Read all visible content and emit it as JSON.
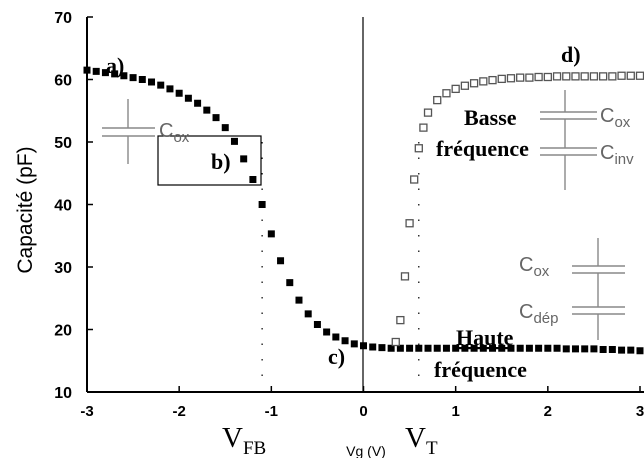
{
  "chart_data": {
    "type": "scatter",
    "xlabel": "Vg (V)",
    "ylabel": "Capacité (pF)",
    "xlim": [
      -3,
      3
    ],
    "ylim": [
      10,
      70
    ],
    "x_ticks": [
      "-3",
      "-2",
      "-1",
      "0",
      "1",
      "2",
      "3"
    ],
    "y_ticks": [
      "10",
      "20",
      "30",
      "40",
      "50",
      "60",
      "70"
    ],
    "grid": false,
    "series": [
      {
        "name": "Haute fréquence",
        "marker": "filled-square",
        "color": "#000000",
        "x": [
          -3.0,
          -2.9,
          -2.8,
          -2.7,
          -2.6,
          -2.5,
          -2.4,
          -2.3,
          -2.2,
          -2.1,
          -2.0,
          -1.9,
          -1.8,
          -1.7,
          -1.6,
          -1.5,
          -1.4,
          -1.3,
          -1.2,
          -1.1,
          -1.0,
          -0.9,
          -0.8,
          -0.7,
          -0.6,
          -0.5,
          -0.4,
          -0.3,
          -0.2,
          -0.1,
          0.0,
          0.1,
          0.2,
          0.3,
          0.4,
          0.5,
          0.6,
          0.7,
          0.8,
          0.9,
          1.0,
          1.1,
          1.2,
          1.3,
          1.4,
          1.5,
          1.6,
          1.7,
          1.8,
          1.9,
          2.0,
          2.1,
          2.2,
          2.3,
          2.4,
          2.5,
          2.6,
          2.7,
          2.8,
          2.9,
          3.0
        ],
        "y": [
          61.5,
          61.3,
          61.1,
          60.9,
          60.6,
          60.3,
          60.0,
          59.6,
          59.1,
          58.5,
          57.8,
          57.0,
          56.2,
          55.1,
          53.9,
          52.3,
          50.1,
          47.3,
          44.0,
          40.0,
          35.3,
          31.0,
          27.5,
          24.7,
          22.5,
          20.8,
          19.6,
          18.8,
          18.2,
          17.7,
          17.4,
          17.2,
          17.1,
          17.0,
          17.0,
          17.0,
          17.0,
          17.0,
          17.0,
          17.0,
          17.0,
          17.0,
          17.0,
          17.0,
          17.0,
          17.0,
          17.0,
          17.0,
          17.0,
          17.0,
          17.0,
          17.0,
          16.9,
          16.9,
          16.9,
          16.9,
          16.8,
          16.8,
          16.7,
          16.7,
          16.6
        ]
      },
      {
        "name": "Basse fréquence",
        "marker": "open-square",
        "color": "#555555",
        "x": [
          0.35,
          0.4,
          0.45,
          0.5,
          0.55,
          0.6,
          0.65,
          0.7,
          0.8,
          0.9,
          1.0,
          1.1,
          1.2,
          1.3,
          1.4,
          1.5,
          1.6,
          1.7,
          1.8,
          1.9,
          2.0,
          2.1,
          2.2,
          2.3,
          2.4,
          2.5,
          2.6,
          2.7,
          2.8,
          2.9,
          3.0
        ],
        "y": [
          18.0,
          21.5,
          28.5,
          37.0,
          44.0,
          49.0,
          52.3,
          54.7,
          56.7,
          57.8,
          58.5,
          59.0,
          59.4,
          59.7,
          59.9,
          60.1,
          60.2,
          60.3,
          60.3,
          60.4,
          60.4,
          60.5,
          60.5,
          60.5,
          60.5,
          60.5,
          60.5,
          60.5,
          60.6,
          60.6,
          60.6
        ]
      }
    ],
    "vertical_markers": [
      {
        "label": "VFB",
        "x": -1.1
      },
      {
        "label": "VT",
        "x": 0.6
      }
    ],
    "region_labels": [
      {
        "text": "a)",
        "x": -2.6,
        "y": 61.5
      },
      {
        "text": "b)",
        "x": -1.6,
        "y": 48.0
      },
      {
        "text": "c)",
        "x": -0.2,
        "y": 16.5
      },
      {
        "text": "d)",
        "x": 2.2,
        "y": 64.5
      }
    ]
  },
  "labels": {
    "vfb_main": "V",
    "vfb_sub": "FB",
    "vt_main": "V",
    "vt_sub": "T",
    "basse_1": "Basse",
    "basse_2": "fréquence",
    "haute_1": "Haute",
    "haute_2": "fréquence",
    "cox_main": "C",
    "cox_sub": "ox",
    "cinv_main": "C",
    "cinv_sub": "inv",
    "cdep_main": "C",
    "cdep_sub": "dép"
  }
}
